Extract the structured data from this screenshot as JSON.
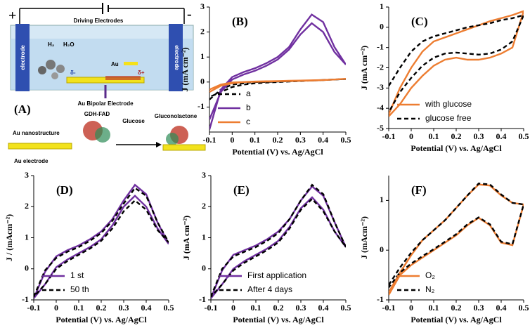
{
  "diagram": {
    "plus": "+",
    "minus": "-",
    "driving": "Driving Electrodes",
    "electrode_left": "electrode",
    "electrode_right": "electrode",
    "h2": "H₂",
    "h2o": "H₂O",
    "delta_minus": "δ-",
    "au": "Au",
    "delta_plus": "δ+",
    "bipolar": "Au Bipolar Electrode",
    "panel": "(A)",
    "enzyme": "GDH-FAD",
    "glucose": "Glucose",
    "product": "Gluconolactone",
    "nano": "Au nanostructure",
    "au_electrode": "Au electrode"
  },
  "chart_data": [
    {
      "type": "line",
      "panel": "(B)",
      "xlabel": "Potential (V) vs. Ag/AgCl",
      "ylabel": "J (mA cm⁻²)",
      "legend": "lower left",
      "x": [
        -0.1,
        -0.05,
        0,
        0.05,
        0.1,
        0.15,
        0.2,
        0.25,
        0.3,
        0.35,
        0.4,
        0.45,
        0.5,
        0.45,
        0.4,
        0.35,
        0.3,
        0.25,
        0.2,
        0.15,
        0.1,
        0.05,
        0,
        -0.05,
        -0.1
      ],
      "xlim": [
        -0.1,
        0.5
      ],
      "xticks": [
        -0.1,
        0,
        0.1,
        0.2,
        0.3,
        0.4,
        0.5
      ],
      "ylim": [
        -2,
        3
      ],
      "yticks": [
        -1,
        0,
        1,
        2,
        3
      ],
      "series": [
        {
          "name": "a",
          "color": "#000000",
          "linestyle": "dashed",
          "values": [
            -0.7,
            -0.3,
            -0.1,
            -0.05,
            0,
            0,
            0.02,
            0.03,
            0.05,
            0.06,
            0.08,
            0.1,
            0.12,
            0.1,
            0.08,
            0.06,
            0.04,
            0.02,
            0,
            -0.02,
            -0.05,
            -0.1,
            -0.2,
            -0.4,
            -0.6
          ]
        },
        {
          "name": "b",
          "color": "#7030a0",
          "linestyle": "solid",
          "values": [
            -1.9,
            -0.3,
            0.2,
            0.4,
            0.55,
            0.75,
            1.0,
            1.4,
            2.1,
            2.7,
            2.4,
            1.4,
            0.7,
            1.2,
            2.0,
            2.35,
            1.9,
            1.3,
            0.9,
            0.65,
            0.45,
            0.3,
            0.1,
            -0.4,
            -1.5
          ]
        },
        {
          "name": "c",
          "color": "#ed7d31",
          "linestyle": "solid",
          "values": [
            -0.4,
            -0.15,
            -0.05,
            0,
            0.02,
            0.03,
            0.04,
            0.05,
            0.06,
            0.07,
            0.08,
            0.1,
            0.13,
            0.1,
            0.08,
            0.06,
            0.05,
            0.04,
            0.03,
            0.02,
            0.01,
            0,
            -0.02,
            -0.1,
            -0.3
          ]
        }
      ]
    },
    {
      "type": "line",
      "panel": "(C)",
      "xlabel": "Potential (V)  vs. Ag/AgCl",
      "ylabel": "J (mA cm⁻²)",
      "legend": "lower left",
      "x": [
        -0.1,
        -0.05,
        0,
        0.05,
        0.1,
        0.15,
        0.2,
        0.25,
        0.3,
        0.35,
        0.4,
        0.45,
        0.5,
        0.45,
        0.4,
        0.35,
        0.3,
        0.25,
        0.2,
        0.15,
        0.1,
        0.05,
        0,
        -0.05,
        -0.1
      ],
      "xlim": [
        -0.1,
        0.5
      ],
      "xticks": [
        -0.1,
        0,
        0.1,
        0.2,
        0.3,
        0.4,
        0.5
      ],
      "ylim": [
        -5,
        1
      ],
      "yticks": [
        -5,
        -4,
        -3,
        -2,
        -1,
        0,
        1
      ],
      "series": [
        {
          "name": "with glucose",
          "color": "#ed7d31",
          "linestyle": "solid",
          "values": [
            -4.3,
            -3,
            -2,
            -1.2,
            -0.7,
            -0.5,
            -0.3,
            -0.1,
            0.1,
            0.3,
            0.45,
            0.6,
            0.8,
            -1,
            -1.3,
            -1.5,
            -1.6,
            -1.6,
            -1.5,
            -1.6,
            -1.9,
            -2.4,
            -3,
            -3.8,
            -4.4
          ]
        },
        {
          "name": "glucose free",
          "color": "#000000",
          "linestyle": "dashed",
          "values": [
            -2.9,
            -2,
            -1.2,
            -0.7,
            -0.45,
            -0.3,
            -0.15,
            0,
            0.1,
            0.2,
            0.35,
            0.45,
            0.6,
            -0.7,
            -1.1,
            -1.3,
            -1.35,
            -1.3,
            -1.25,
            -1.3,
            -1.5,
            -1.9,
            -2.5,
            -3.2,
            -4.2
          ]
        }
      ]
    },
    {
      "type": "line",
      "panel": "(D)",
      "xlabel": "Potential (V) vs. Ag/AgCl",
      "ylabel": "J / (mAcm⁻²)",
      "legend": "lower left",
      "x": [
        -0.1,
        -0.05,
        0,
        0.05,
        0.1,
        0.15,
        0.2,
        0.25,
        0.3,
        0.35,
        0.4,
        0.45,
        0.5,
        0.45,
        0.4,
        0.35,
        0.3,
        0.25,
        0.2,
        0.15,
        0.1,
        0.05,
        0,
        -0.05,
        -0.1
      ],
      "xlim": [
        -0.1,
        0.5
      ],
      "xticks": [
        -0.1,
        0,
        0.1,
        0.2,
        0.3,
        0.4,
        0.5
      ],
      "ylim": [
        -1,
        3
      ],
      "yticks": [
        -1,
        0,
        1,
        2,
        3
      ],
      "series": [
        {
          "name": "1 st",
          "color": "#7030a0",
          "linestyle": "solid",
          "values": [
            -0.95,
            -0.1,
            0.4,
            0.6,
            0.75,
            0.95,
            1.2,
            1.6,
            2.2,
            2.7,
            2.4,
            1.5,
            0.8,
            1.3,
            2,
            2.35,
            2,
            1.4,
            0.95,
            0.7,
            0.5,
            0.3,
            0.05,
            -0.5,
            -0.95
          ]
        },
        {
          "name": "50 th",
          "color": "#000000",
          "linestyle": "dashed",
          "values": [
            -0.9,
            -0.05,
            0.35,
            0.55,
            0.7,
            0.9,
            1.15,
            1.55,
            2.1,
            2.6,
            2.35,
            1.5,
            0.85,
            1.25,
            1.9,
            2.2,
            1.85,
            1.3,
            0.9,
            0.65,
            0.45,
            0.25,
            0,
            -0.5,
            -0.9
          ]
        }
      ]
    },
    {
      "type": "line",
      "panel": "(E)",
      "xlabel": "Potential (V) vs. Ag/AgCl",
      "ylabel": "J (mA cm⁻²)",
      "legend": "lower left",
      "x": [
        -0.1,
        -0.05,
        0,
        0.05,
        0.1,
        0.15,
        0.2,
        0.25,
        0.3,
        0.35,
        0.4,
        0.45,
        0.5,
        0.45,
        0.4,
        0.35,
        0.3,
        0.25,
        0.2,
        0.15,
        0.1,
        0.05,
        0,
        -0.05,
        -0.1
      ],
      "xlim": [
        -0.1,
        0.5
      ],
      "xticks": [
        -0.1,
        0,
        0.1,
        0.2,
        0.3,
        0.4,
        0.5
      ],
      "ylim": [
        -1,
        3
      ],
      "yticks": [
        -1,
        0,
        1,
        2,
        3
      ],
      "series": [
        {
          "name": "First application",
          "color": "#7030a0",
          "linestyle": "solid",
          "values": [
            -0.95,
            -0.05,
            0.45,
            0.6,
            0.75,
            0.95,
            1.2,
            1.6,
            2.2,
            2.65,
            2.35,
            1.5,
            0.7,
            1.2,
            1.9,
            2.3,
            1.95,
            1.35,
            0.9,
            0.65,
            0.45,
            0.25,
            0,
            -0.5,
            -0.95
          ]
        },
        {
          "name": "After 4 days",
          "color": "#000000",
          "linestyle": "dashed",
          "values": [
            -0.9,
            0,
            0.4,
            0.55,
            0.7,
            0.9,
            1.15,
            1.6,
            2.2,
            2.7,
            2.4,
            1.5,
            0.7,
            1.2,
            1.85,
            2.25,
            1.9,
            1.3,
            0.85,
            0.6,
            0.4,
            0.2,
            -0.05,
            -0.5,
            -0.9
          ]
        }
      ]
    },
    {
      "type": "line",
      "panel": "(F)",
      "xlabel": "Potential (V) vs. Ag/AgCl",
      "ylabel": "J (mAcm⁻²)",
      "legend": "lower left",
      "x": [
        -0.1,
        -0.05,
        0,
        0.05,
        0.1,
        0.15,
        0.2,
        0.25,
        0.3,
        0.35,
        0.4,
        0.45,
        0.5,
        0.45,
        0.4,
        0.35,
        0.3,
        0.25,
        0.2,
        0.15,
        0.1,
        0.05,
        0,
        -0.05,
        -0.1
      ],
      "xlim": [
        -0.1,
        0.5
      ],
      "xticks": [
        -0.1,
        0,
        0.1,
        0.2,
        0.3,
        0.4,
        0.5
      ],
      "ylim": [
        -1,
        1.5
      ],
      "yticks": [
        -1,
        0,
        1
      ],
      "series": [
        {
          "name": "O₂",
          "color": "#ed7d31",
          "linestyle": "solid",
          "values": [
            -0.85,
            -0.45,
            -0.1,
            0.2,
            0.4,
            0.6,
            0.85,
            1.1,
            1.32,
            1.3,
            1.1,
            0.95,
            0.92,
            0.1,
            0.15,
            0.5,
            0.65,
            0.5,
            0.3,
            0.15,
            0,
            -0.15,
            -0.3,
            -0.5,
            -0.9
          ]
        },
        {
          "name": "N₂",
          "color": "#000000",
          "linestyle": "dashed",
          "values": [
            -0.7,
            -0.35,
            -0.05,
            0.2,
            0.4,
            0.6,
            0.85,
            1.1,
            1.34,
            1.32,
            1.12,
            0.95,
            0.92,
            0.12,
            0.17,
            0.52,
            0.66,
            0.52,
            0.32,
            0.17,
            0.02,
            -0.12,
            -0.27,
            -0.45,
            -0.75
          ]
        }
      ]
    }
  ]
}
